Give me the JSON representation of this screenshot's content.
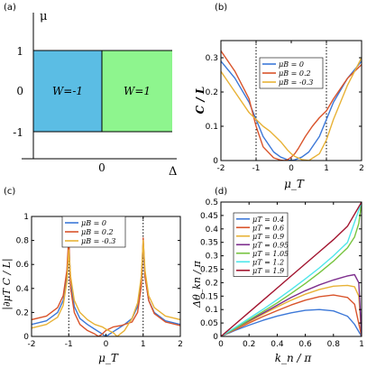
{
  "chart_data": [
    {
      "panel_label": "(a)",
      "type": "diagram",
      "xlabel": "Δ",
      "ylabel": "μ",
      "xticks": [
        "0"
      ],
      "yticks": [
        "1",
        "0",
        "-1"
      ],
      "regions": [
        {
          "label": "W=-1",
          "color": "#5bbde4"
        },
        {
          "label": "W=1",
          "color": "#8ef58e"
        }
      ]
    },
    {
      "panel_label": "(b)",
      "type": "line",
      "xlabel": "μ_T",
      "ylabel": "C / L",
      "xlim": [
        -2,
        2
      ],
      "ylim": [
        0,
        0.35
      ],
      "xticks": [
        "-2",
        "-1",
        "0",
        "1",
        "2"
      ],
      "yticks": [
        "0",
        "0.1",
        "0.2",
        "0.3"
      ],
      "vlines": [
        -1,
        1
      ],
      "legend_position": "top-left",
      "series": [
        {
          "name": "μB = 0",
          "color": "#3c78d8",
          "x": [
            -2,
            -1.6,
            -1.2,
            -1.0,
            -0.8,
            -0.5,
            -0.3,
            -0.1,
            0,
            0.1,
            0.3,
            0.5,
            0.8,
            1.0,
            1.2,
            1.6,
            2
          ],
          "y": [
            0.29,
            0.24,
            0.17,
            0.12,
            0.07,
            0.025,
            0.01,
            0.002,
            0,
            0.002,
            0.01,
            0.025,
            0.07,
            0.12,
            0.17,
            0.24,
            0.29
          ]
        },
        {
          "name": "μB = 0.2",
          "color": "#d9542b",
          "x": [
            -2,
            -1.6,
            -1.2,
            -1.0,
            -0.8,
            -0.5,
            -0.3,
            -0.2,
            -0.1,
            0,
            0.1,
            0.2,
            0.4,
            0.6,
            0.8,
            1.0,
            1.2,
            1.6,
            2
          ],
          "y": [
            0.32,
            0.26,
            0.18,
            0.1,
            0.04,
            0.008,
            0.001,
            0,
            0.003,
            0.01,
            0.02,
            0.035,
            0.07,
            0.1,
            0.125,
            0.145,
            0.18,
            0.24,
            0.28
          ]
        },
        {
          "name": "μB = -0.3",
          "color": "#e8b236",
          "x": [
            -2,
            -1.6,
            -1.2,
            -1.0,
            -0.8,
            -0.6,
            -0.3,
            -0.1,
            0,
            0.1,
            0.3,
            0.5,
            0.8,
            1.0,
            1.2,
            1.6,
            2
          ],
          "y": [
            0.26,
            0.2,
            0.14,
            0.12,
            0.1,
            0.085,
            0.055,
            0.03,
            0.02,
            0.012,
            0.003,
            0,
            0.02,
            0.06,
            0.12,
            0.22,
            0.3
          ]
        }
      ]
    },
    {
      "panel_label": "(c)",
      "type": "line",
      "xlabel": "μ_T",
      "ylabel": "|∂μT C / L|",
      "xlim": [
        -2,
        2
      ],
      "ylim": [
        0,
        1
      ],
      "xticks": [
        "-2",
        "-1",
        "0",
        "1",
        "2"
      ],
      "yticks": [
        "0",
        "0.2",
        "0.4",
        "0.6",
        "0.8",
        "1"
      ],
      "vlines": [
        -1,
        1
      ],
      "legend_position": "top-left",
      "series": [
        {
          "name": "μB = 0",
          "color": "#3c78d8",
          "x": [
            -2,
            -1.6,
            -1.3,
            -1.15,
            -1.05,
            -1.0,
            -0.95,
            -0.85,
            -0.7,
            -0.5,
            -0.3,
            -0.1,
            0,
            0.1,
            0.3,
            0.5,
            0.7,
            0.85,
            0.95,
            1.0,
            1.05,
            1.15,
            1.3,
            1.6,
            2
          ],
          "y": [
            0.1,
            0.13,
            0.2,
            0.3,
            0.5,
            0.78,
            0.45,
            0.25,
            0.15,
            0.1,
            0.06,
            0.02,
            0,
            0.02,
            0.06,
            0.1,
            0.15,
            0.25,
            0.45,
            0.78,
            0.5,
            0.3,
            0.2,
            0.13,
            0.1
          ]
        },
        {
          "name": "μB = 0.2",
          "color": "#d9542b",
          "x": [
            -2,
            -1.6,
            -1.3,
            -1.15,
            -1.05,
            -1.0,
            -0.95,
            -0.85,
            -0.7,
            -0.5,
            -0.3,
            -0.2,
            -0.1,
            0,
            0.2,
            0.4,
            0.7,
            0.85,
            0.95,
            1.0,
            1.05,
            1.15,
            1.3,
            1.6,
            2
          ],
          "y": [
            0.14,
            0.17,
            0.24,
            0.34,
            0.55,
            0.83,
            0.4,
            0.2,
            0.1,
            0.05,
            0.02,
            0,
            0.02,
            0.05,
            0.08,
            0.09,
            0.12,
            0.2,
            0.42,
            0.82,
            0.5,
            0.3,
            0.19,
            0.12,
            0.09
          ]
        },
        {
          "name": "μB = -0.3",
          "color": "#e8b236",
          "x": [
            -2,
            -1.6,
            -1.3,
            -1.15,
            -1.05,
            -1.0,
            -0.95,
            -0.85,
            -0.7,
            -0.5,
            -0.3,
            -0.1,
            0,
            0.2,
            0.3,
            0.5,
            0.7,
            0.85,
            0.95,
            1.0,
            1.05,
            1.15,
            1.3,
            1.6,
            2
          ],
          "y": [
            0.07,
            0.1,
            0.16,
            0.26,
            0.46,
            0.72,
            0.5,
            0.3,
            0.2,
            0.14,
            0.1,
            0.08,
            0.06,
            0.03,
            0,
            0.05,
            0.15,
            0.28,
            0.5,
            0.8,
            0.55,
            0.34,
            0.24,
            0.17,
            0.14
          ]
        }
      ]
    },
    {
      "panel_label": "(d)",
      "type": "line",
      "xlabel": "k_n / π",
      "ylabel": "Δθ_kn / π",
      "xlim": [
        0,
        1
      ],
      "ylim": [
        0,
        0.5
      ],
      "xticks": [
        "0",
        "0.2",
        "0.4",
        "0.6",
        "0.8",
        "1"
      ],
      "yticks": [
        "0",
        "0.05",
        "0.1",
        "0.15",
        "0.2",
        "0.25",
        "0.3",
        "0.35",
        "0.4",
        "0.45",
        "0.5"
      ],
      "legend_position": "top-left",
      "series": [
        {
          "name": "μT = 0.4",
          "color": "#3c78d8",
          "x": [
            0,
            0.1,
            0.2,
            0.3,
            0.4,
            0.5,
            0.6,
            0.7,
            0.8,
            0.9,
            0.95,
            1
          ],
          "y": [
            0,
            0.022,
            0.042,
            0.06,
            0.076,
            0.088,
            0.097,
            0.1,
            0.095,
            0.075,
            0.045,
            0
          ]
        },
        {
          "name": "μT = 0.6",
          "color": "#d9542b",
          "x": [
            0,
            0.1,
            0.2,
            0.3,
            0.4,
            0.5,
            0.6,
            0.7,
            0.8,
            0.9,
            0.95,
            1
          ],
          "y": [
            0,
            0.025,
            0.05,
            0.074,
            0.096,
            0.117,
            0.135,
            0.148,
            0.154,
            0.145,
            0.12,
            0
          ]
        },
        {
          "name": "μT = 0.9",
          "color": "#e8b236",
          "x": [
            0,
            0.1,
            0.2,
            0.3,
            0.4,
            0.5,
            0.6,
            0.7,
            0.8,
            0.9,
            0.95,
            0.98,
            1
          ],
          "y": [
            0,
            0.028,
            0.055,
            0.083,
            0.11,
            0.135,
            0.157,
            0.175,
            0.187,
            0.19,
            0.185,
            0.15,
            0
          ]
        },
        {
          "name": "μT = 0.95",
          "color": "#7e2f8e",
          "x": [
            0,
            0.1,
            0.2,
            0.3,
            0.4,
            0.5,
            0.6,
            0.7,
            0.8,
            0.9,
            0.95,
            0.98,
            1
          ],
          "y": [
            0,
            0.029,
            0.058,
            0.087,
            0.116,
            0.145,
            0.17,
            0.192,
            0.21,
            0.225,
            0.23,
            0.2,
            0
          ]
        },
        {
          "name": "μT = 1.05",
          "color": "#77c43f",
          "x": [
            0,
            0.1,
            0.2,
            0.3,
            0.4,
            0.5,
            0.6,
            0.7,
            0.8,
            0.9,
            0.95,
            0.98,
            1
          ],
          "y": [
            0,
            0.03,
            0.061,
            0.093,
            0.125,
            0.16,
            0.197,
            0.237,
            0.28,
            0.33,
            0.37,
            0.42,
            0.5
          ]
        },
        {
          "name": "μT = 1.2",
          "color": "#4ee6ea",
          "x": [
            0,
            0.1,
            0.2,
            0.3,
            0.4,
            0.5,
            0.6,
            0.7,
            0.8,
            0.9,
            1
          ],
          "y": [
            0,
            0.033,
            0.067,
            0.101,
            0.137,
            0.175,
            0.214,
            0.255,
            0.3,
            0.35,
            0.5
          ]
        },
        {
          "name": "μT = 1.9",
          "color": "#a2142f",
          "x": [
            0,
            0.1,
            0.2,
            0.3,
            0.4,
            0.5,
            0.6,
            0.7,
            0.8,
            0.9,
            1
          ],
          "y": [
            0,
            0.045,
            0.09,
            0.135,
            0.18,
            0.225,
            0.27,
            0.315,
            0.36,
            0.41,
            0.5
          ]
        }
      ]
    }
  ]
}
